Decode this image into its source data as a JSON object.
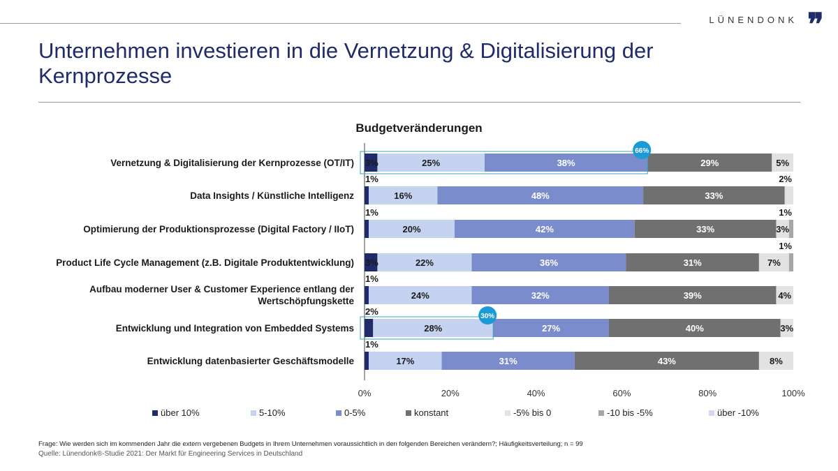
{
  "header": {
    "logo_text": "LÜNENDONK",
    "logo_mark": "❞",
    "title": "Unternehmen investieren in die Vernetzung & Digitalisierung der Kernprozesse"
  },
  "chart_data": {
    "type": "bar",
    "orientation": "horizontal",
    "stacked": "100%",
    "title": "Budgetveränderungen",
    "categories": [
      "Vernetzung & Digitalisierung der Kernprozesse (OT/IT)",
      "Data Insights / Künstliche Intelligenz",
      "Optimierung der Produktionsprozesse (Digital Factory / IIoT)",
      "Product Life Cycle Management (z.B. Digitale Produktentwicklung)",
      "Aufbau moderner User & Customer Experience entlang der Wertschöpfungskette",
      "Entwicklung und Integration von Embedded Systems",
      "Entwicklung datenbasierter Geschäftsmodelle"
    ],
    "series": [
      {
        "name": "über 10%",
        "color": "#1f2b6b",
        "values": [
          3,
          1,
          1,
          3,
          1,
          2,
          1
        ]
      },
      {
        "name": "5-10%",
        "color": "#c5d3f0",
        "values": [
          25,
          16,
          20,
          22,
          24,
          28,
          17
        ]
      },
      {
        "name": "0-5%",
        "color": "#7b8ccc",
        "values": [
          38,
          48,
          42,
          36,
          32,
          27,
          31
        ]
      },
      {
        "name": "konstant",
        "color": "#707070",
        "values": [
          29,
          33,
          33,
          31,
          39,
          40,
          43
        ]
      },
      {
        "name": "-5% bis 0",
        "color": "#e2e2e2",
        "values": [
          5,
          2,
          3,
          7,
          4,
          3,
          8
        ]
      },
      {
        "name": "-10 bis -5%",
        "color": "#a6a6a6",
        "values": [
          0,
          0,
          1,
          1,
          0,
          0,
          0
        ]
      },
      {
        "name": "über -10%",
        "color": "#d4d9f2",
        "values": [
          0,
          0,
          0,
          0,
          0,
          0,
          0
        ]
      }
    ],
    "data_labels": [
      [
        {
          "s": 0,
          "text": "3%",
          "pos": "in"
        },
        {
          "s": 1,
          "text": "25%",
          "pos": "in"
        },
        {
          "s": 2,
          "text": "38%",
          "pos": "in"
        },
        {
          "s": 3,
          "text": "29%",
          "pos": "in"
        },
        {
          "s": 4,
          "text": "5%",
          "pos": "in"
        }
      ],
      [
        {
          "s": 0,
          "text": "1%",
          "pos": "above-left"
        },
        {
          "s": 1,
          "text": "16%",
          "pos": "in"
        },
        {
          "s": 2,
          "text": "48%",
          "pos": "in"
        },
        {
          "s": 3,
          "text": "33%",
          "pos": "in"
        },
        {
          "s": 4,
          "text": "2%",
          "pos": "above-right"
        }
      ],
      [
        {
          "s": 0,
          "text": "1%",
          "pos": "above-left"
        },
        {
          "s": 1,
          "text": "20%",
          "pos": "in"
        },
        {
          "s": 2,
          "text": "42%",
          "pos": "in"
        },
        {
          "s": 3,
          "text": "33%",
          "pos": "in"
        },
        {
          "s": 4,
          "text": "3%",
          "pos": "in"
        },
        {
          "s": 5,
          "text": "1%",
          "pos": "above-right"
        }
      ],
      [
        {
          "s": 0,
          "text": "3%",
          "pos": "in"
        },
        {
          "s": 1,
          "text": "22%",
          "pos": "in"
        },
        {
          "s": 2,
          "text": "36%",
          "pos": "in"
        },
        {
          "s": 3,
          "text": "31%",
          "pos": "in"
        },
        {
          "s": 4,
          "text": "7%",
          "pos": "in"
        },
        {
          "s": 5,
          "text": "1%",
          "pos": "above-right"
        }
      ],
      [
        {
          "s": 0,
          "text": "1%",
          "pos": "above-left"
        },
        {
          "s": 1,
          "text": "24%",
          "pos": "in"
        },
        {
          "s": 2,
          "text": "32%",
          "pos": "in"
        },
        {
          "s": 3,
          "text": "39%",
          "pos": "in"
        },
        {
          "s": 4,
          "text": "4%",
          "pos": "in"
        }
      ],
      [
        {
          "s": 0,
          "text": "2%",
          "pos": "above-left"
        },
        {
          "s": 1,
          "text": "28%",
          "pos": "in"
        },
        {
          "s": 2,
          "text": "27%",
          "pos": "in"
        },
        {
          "s": 3,
          "text": "40%",
          "pos": "in"
        },
        {
          "s": 4,
          "text": "3%",
          "pos": "in"
        }
      ],
      [
        {
          "s": 0,
          "text": "1%",
          "pos": "above-left"
        },
        {
          "s": 1,
          "text": "17%",
          "pos": "in"
        },
        {
          "s": 2,
          "text": "31%",
          "pos": "in"
        },
        {
          "s": 3,
          "text": "43%",
          "pos": "in"
        },
        {
          "s": 4,
          "text": "8%",
          "pos": "in"
        }
      ]
    ],
    "highlights": [
      {
        "row": 0,
        "value": 66,
        "label": "66%"
      },
      {
        "row": 5,
        "value": 30,
        "label": "30%"
      }
    ],
    "xticks": [
      "0%",
      "20%",
      "40%",
      "60%",
      "80%",
      "100%"
    ],
    "xlim": [
      0,
      100
    ],
    "legend_position": "bottom"
  },
  "footer": {
    "question": "Frage: Wie werden sich im kommenden Jahr die extern vergebenen Budgets in Ihrem Unternehmen voraussichtlich in den folgenden Bereichen verändern?; Häufigkeitsverteilung; n = 99",
    "source": "Quelle: Lünendonk®-Studie  2021: Der Markt für Engineering Services in Deutschland"
  }
}
